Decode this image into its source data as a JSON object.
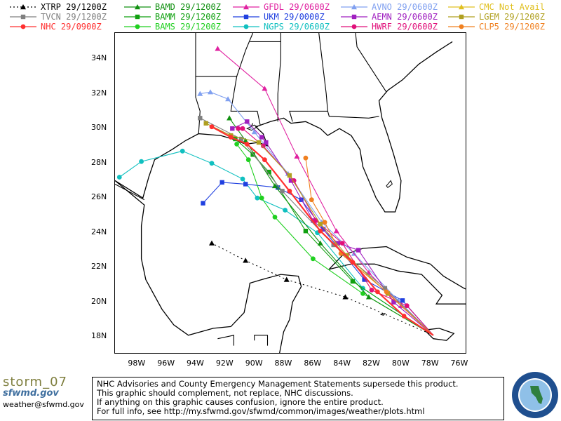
{
  "legend": [
    {
      "id": "xtrp",
      "label": "XTRP",
      "time": "29/1200Z",
      "color": "#000000",
      "marker": "triangle",
      "dash": true
    },
    {
      "id": "tvcn",
      "label": "TVCN",
      "time": "29/1200Z",
      "color": "#808080",
      "marker": "square",
      "dash": false
    },
    {
      "id": "nhc",
      "label": "NHC",
      "time": "29/0900Z",
      "color": "#ff3030",
      "marker": "circle",
      "dash": false
    },
    {
      "id": "bamd",
      "label": "BAMD",
      "time": "29/1200Z",
      "color": "#109010",
      "marker": "triangle",
      "dash": false
    },
    {
      "id": "bamm",
      "label": "BAMM",
      "time": "29/1200Z",
      "color": "#10a010",
      "marker": "square",
      "dash": false
    },
    {
      "id": "bams",
      "label": "BAMS",
      "time": "29/1200Z",
      "color": "#20d020",
      "marker": "circle",
      "dash": false
    },
    {
      "id": "gfdl",
      "label": "GFDL",
      "time": "29/0600Z",
      "color": "#e020a0",
      "marker": "triangle",
      "dash": false
    },
    {
      "id": "ukm",
      "label": "UKM",
      "time": "29/0000Z",
      "color": "#2040e0",
      "marker": "square",
      "dash": false
    },
    {
      "id": "ngps",
      "label": "NGPS",
      "time": "29/0600Z",
      "color": "#10c0c0",
      "marker": "circle",
      "dash": false
    },
    {
      "id": "avno",
      "label": "AVNO",
      "time": "29/0600Z",
      "color": "#80a0f0",
      "marker": "triangle",
      "dash": false
    },
    {
      "id": "aemn",
      "label": "AEMN",
      "time": "29/0600Z",
      "color": "#a020c0",
      "marker": "square",
      "dash": false
    },
    {
      "id": "hwrf",
      "label": "HWRF",
      "time": "29/0600Z",
      "color": "#e0107a",
      "marker": "circle",
      "dash": false
    },
    {
      "id": "cmc",
      "label": "CMC",
      "time": "Not Avail",
      "color": "#e0c020",
      "marker": "triangle",
      "dash": false
    },
    {
      "id": "lgem",
      "label": "LGEM",
      "time": "29/1200Z",
      "color": "#b0a020",
      "marker": "square",
      "dash": false
    },
    {
      "id": "clp5",
      "label": "CLP5",
      "time": "29/1200Z",
      "color": "#f08020",
      "marker": "circle",
      "dash": false
    }
  ],
  "map": {
    "lat_labels": [
      "34N",
      "32N",
      "30N",
      "28N",
      "26N",
      "24N",
      "22N",
      "20N",
      "18N"
    ],
    "lon_labels": [
      "98W",
      "96W",
      "94W",
      "92W",
      "90W",
      "88W",
      "86W",
      "84W",
      "82W",
      "80W",
      "78W",
      "76W"
    ],
    "lat_range": [
      17,
      35.5
    ],
    "lon_range": [
      -99.5,
      -75.5
    ],
    "land_color": "#000000"
  },
  "tracks": {
    "common_start": [
      -77.8,
      18.1
    ],
    "xtrp": [
      [
        -77.8,
        18.1
      ],
      [
        -83.8,
        20.3
      ],
      [
        -87.8,
        21.3
      ],
      [
        -90.6,
        22.4
      ],
      [
        -92.9,
        23.4
      ]
    ],
    "tvcn": [
      [
        -77.8,
        18.1
      ],
      [
        -81.1,
        20.8
      ],
      [
        -84.6,
        23.3
      ],
      [
        -88.1,
        26.4
      ],
      [
        -90.9,
        29.4
      ],
      [
        -93.7,
        30.6
      ]
    ],
    "nhc": [
      [
        -77.8,
        18.1
      ],
      [
        -79.8,
        19.2
      ],
      [
        -81.6,
        20.6
      ],
      [
        -83.3,
        22.3
      ],
      [
        -85.5,
        24.1
      ],
      [
        -87.6,
        26.4
      ],
      [
        -89.3,
        28.2
      ],
      [
        -90.5,
        29.1
      ],
      [
        -91.6,
        29.5
      ],
      [
        -92.9,
        30.1
      ]
    ],
    "bamd": [
      [
        -77.8,
        18.1
      ],
      [
        -82.2,
        20.3
      ],
      [
        -85.5,
        23.4
      ],
      [
        -88.6,
        26.7
      ],
      [
        -90.6,
        29.3
      ],
      [
        -91.7,
        30.6
      ]
    ],
    "bamm": [
      [
        -77.8,
        18.1
      ],
      [
        -83.3,
        21.2
      ],
      [
        -86.5,
        24.1
      ],
      [
        -89.0,
        27.5
      ],
      [
        -90.1,
        28.5
      ],
      [
        -91.3,
        29.4
      ]
    ],
    "bams": [
      [
        -77.8,
        18.1
      ],
      [
        -82.6,
        20.5
      ],
      [
        -86.0,
        22.5
      ],
      [
        -88.6,
        24.9
      ],
      [
        -89.5,
        26.0
      ],
      [
        -90.4,
        28.2
      ],
      [
        -91.2,
        29.1
      ]
    ],
    "gfdl": [
      [
        -77.8,
        18.1
      ],
      [
        -80.0,
        19.8
      ],
      [
        -82.2,
        21.7
      ],
      [
        -84.4,
        24.1
      ],
      [
        -87.1,
        28.4
      ],
      [
        -89.3,
        32.3
      ],
      [
        -92.5,
        34.6
      ]
    ],
    "ukm": [
      [
        -77.8,
        18.1
      ],
      [
        -79.9,
        20.1
      ],
      [
        -82.5,
        21.3
      ],
      [
        -85.3,
        24.2
      ],
      [
        -86.8,
        25.9
      ],
      [
        -88.4,
        26.6
      ],
      [
        -90.6,
        26.8
      ],
      [
        -92.2,
        26.9
      ],
      [
        -93.5,
        25.7
      ]
    ],
    "ngps": [
      [
        -77.8,
        18.1
      ],
      [
        -82.6,
        20.8
      ],
      [
        -85.7,
        24.0
      ],
      [
        -87.9,
        25.3
      ],
      [
        -89.8,
        26.0
      ],
      [
        -90.8,
        27.1
      ],
      [
        -92.9,
        28.0
      ],
      [
        -94.9,
        28.7
      ],
      [
        -97.7,
        28.1
      ],
      [
        -99.2,
        27.2
      ]
    ],
    "avno": [
      [
        -77.8,
        18.1
      ],
      [
        -80.2,
        20.1
      ],
      [
        -83.2,
        22.8
      ],
      [
        -85.4,
        24.6
      ],
      [
        -87.7,
        27.4
      ],
      [
        -90.0,
        29.8
      ],
      [
        -91.8,
        31.7
      ],
      [
        -93.0,
        32.1
      ],
      [
        -93.7,
        32.0
      ]
    ],
    "aemn": [
      [
        -77.8,
        18.1
      ],
      [
        -80.5,
        20.0
      ],
      [
        -82.9,
        23.0
      ],
      [
        -84.3,
        23.4
      ],
      [
        -86.0,
        24.7
      ],
      [
        -87.5,
        27.0
      ],
      [
        -89.2,
        29.2
      ],
      [
        -89.5,
        29.5
      ],
      [
        -90.5,
        30.4
      ],
      [
        -91.5,
        30.0
      ]
    ],
    "hwrf": [
      [
        -77.8,
        18.1
      ],
      [
        -79.6,
        19.8
      ],
      [
        -82.0,
        20.7
      ],
      [
        -84.0,
        23.4
      ],
      [
        -85.8,
        24.7
      ],
      [
        -87.3,
        27.0
      ],
      [
        -89.4,
        29.0
      ],
      [
        -90.8,
        30.0
      ],
      [
        -91.1,
        30.0
      ]
    ],
    "lgem": [
      [
        -77.8,
        18.1
      ],
      [
        -80.9,
        20.5
      ],
      [
        -83.7,
        22.7
      ],
      [
        -85.5,
        24.5
      ],
      [
        -87.6,
        27.3
      ],
      [
        -89.7,
        29.2
      ],
      [
        -91.6,
        29.6
      ],
      [
        -93.3,
        30.3
      ]
    ],
    "clp5": [
      [
        -77.8,
        18.1
      ],
      [
        -81.0,
        20.6
      ],
      [
        -84.1,
        22.8
      ],
      [
        -85.2,
        24.6
      ],
      [
        -86.1,
        25.9
      ],
      [
        -86.5,
        28.3
      ]
    ]
  },
  "footer": {
    "storm": "storm_07",
    "org": "sfwmd.gov",
    "email": "weather@sfwmd.gov",
    "disclaimer": [
      "NHC Advisories and County Emergency Management Statements supersede this product.",
      "This graphic should complement, not replace, NHC discussions.",
      "If anything on this graphic causes confusion, ignore the entire product.",
      "For full info, see  http://my.sfwmd.gov/sfwmd/common/images/weather/plots.html"
    ],
    "seal_text": "SOUTH FLORIDA WATER MANAGEMENT DISTRICT"
  }
}
